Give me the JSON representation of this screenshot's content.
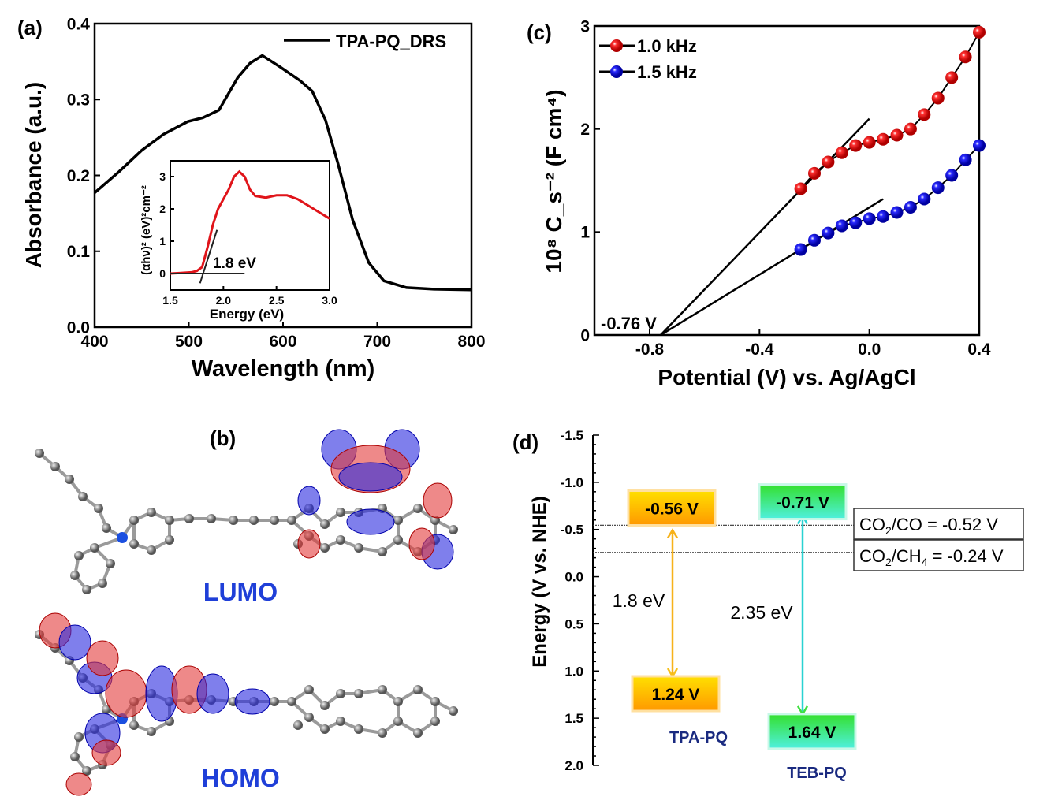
{
  "panel_labels": {
    "a": "(a)",
    "b": "(b)",
    "c": "(c)",
    "d": "(d)"
  },
  "chart_data": [
    {
      "id": "a",
      "type": "line",
      "xlabel": "Wavelength (nm)",
      "ylabel": "Absorbance (a.u.)",
      "xlim": [
        400,
        800
      ],
      "ylim": [
        0.0,
        0.4
      ],
      "xticks": [
        "400",
        "500",
        "600",
        "700",
        "800"
      ],
      "yticks": [
        "0.0",
        "0.1",
        "0.2",
        "0.3",
        "0.4"
      ],
      "legend_position": "top-right",
      "grid": false,
      "series": [
        {
          "name": "TPA-PQ_DRS",
          "color": "#000000",
          "x": [
            400,
            426,
            450,
            473,
            499,
            515,
            532,
            552,
            565,
            578,
            598,
            618,
            631,
            645,
            658,
            674,
            691,
            707,
            731,
            760,
            800
          ],
          "y": [
            0.177,
            0.205,
            0.233,
            0.254,
            0.271,
            0.276,
            0.286,
            0.329,
            0.348,
            0.358,
            0.342,
            0.325,
            0.311,
            0.273,
            0.217,
            0.141,
            0.085,
            0.061,
            0.052,
            0.05,
            0.049
          ]
        }
      ]
    },
    {
      "id": "a-inset",
      "type": "line",
      "xlabel": "Energy (eV)",
      "ylabel": "(αhν)² (eV)²cm⁻²",
      "xlim": [
        1.5,
        3.0
      ],
      "ylim": [
        -0.5,
        3.5
      ],
      "xticks": [
        "1.5",
        "2.0",
        "2.5",
        "3.0"
      ],
      "yticks": [
        "0",
        "1",
        "2",
        "3"
      ],
      "grid": false,
      "series": [
        {
          "color": "#e0141a",
          "x": [
            1.5,
            1.6,
            1.7,
            1.75,
            1.8,
            1.85,
            1.9,
            1.95,
            2.0,
            2.05,
            2.1,
            2.15,
            2.2,
            2.25,
            2.3,
            2.4,
            2.5,
            2.6,
            2.7,
            2.8,
            2.9,
            3.0
          ],
          "y": [
            0.0,
            0.02,
            0.04,
            0.08,
            0.2,
            0.8,
            1.5,
            2.0,
            2.3,
            2.6,
            3.0,
            3.15,
            3.0,
            2.6,
            2.4,
            2.35,
            2.42,
            2.42,
            2.3,
            2.1,
            1.9,
            1.7
          ]
        }
      ],
      "tangent": {
        "x": [
          1.78,
          1.94
        ],
        "y": [
          -0.3,
          1.35
        ]
      },
      "baseline": {
        "x": [
          1.5,
          2.2
        ],
        "y": [
          0,
          0
        ]
      },
      "annotation": "1.8 eV"
    },
    {
      "id": "c",
      "type": "scatter",
      "xlabel": "Potential (V) vs. Ag/AgCl",
      "ylabel": "10⁸ C_s⁻² (F cm⁴)",
      "xlim": [
        -1.0,
        0.4
      ],
      "ylim": [
        0,
        3
      ],
      "xticks": [
        "-0.8",
        "-0.4",
        "0.0",
        "0.4"
      ],
      "yticks": [
        "0",
        "1",
        "2",
        "3"
      ],
      "legend_position": "top-left",
      "grid": false,
      "x": [
        -0.25,
        -0.2,
        -0.15,
        -0.1,
        -0.05,
        0.0,
        0.05,
        0.1,
        0.15,
        0.2,
        0.25,
        0.3,
        0.35,
        0.4
      ],
      "series": [
        {
          "name": "1.0 kHz",
          "color": "#e8141c",
          "y": [
            1.42,
            1.57,
            1.68,
            1.77,
            1.84,
            1.87,
            1.9,
            1.94,
            2.0,
            2.14,
            2.3,
            2.5,
            2.7,
            2.94
          ],
          "fit": {
            "x": [
              -0.76,
              0.0
            ],
            "y": [
              0,
              2.1
            ]
          }
        },
        {
          "name": "1.5 kHz",
          "color": "#1414e0",
          "y": [
            0.83,
            0.92,
            0.99,
            1.06,
            1.09,
            1.13,
            1.15,
            1.19,
            1.24,
            1.32,
            1.43,
            1.55,
            1.7,
            1.84
          ],
          "fit": {
            "x": [
              -0.76,
              0.05
            ],
            "y": [
              0,
              1.32
            ]
          }
        }
      ],
      "annotation": "-0.76 V"
    },
    {
      "id": "d",
      "type": "bar",
      "ylabel": "Energy (V vs. NHE)",
      "ylim": [
        -1.5,
        2.0
      ],
      "yticks": [
        "-1.5",
        "-1.0",
        "-0.5",
        "0.0",
        "0.5",
        "1.0",
        "1.5",
        "2.0"
      ],
      "y_inverted": true,
      "materials": [
        {
          "name": "TPA-PQ",
          "cb": -0.56,
          "vb": 1.24,
          "cb_label": "-0.56 V",
          "vb_label": "1.24 V",
          "gap_label": "1.8 eV",
          "box_color": "#ffc000",
          "box_color2": "#ff9a00",
          "arrow_color": "#f7b21a"
        },
        {
          "name": "TEB-PQ",
          "cb": -0.71,
          "vb": 1.64,
          "cb_label": "-0.71 V",
          "vb_label": "1.64 V",
          "gap_label": "2.35 eV",
          "box_color": "#3ee03e",
          "box_color2": "#4ef0d8",
          "arrow_color": "#2ad2d2"
        }
      ],
      "redox": [
        {
          "label_main": "CO",
          "label_sub": "2",
          "label_rest": "/CO",
          "label_value": " = -0.52 V",
          "value": -0.52
        },
        {
          "label_main": "CO",
          "label_sub": "2",
          "label_rest": "/CH",
          "label_sub2": "4",
          "label_value": " = -0.24 V",
          "value": -0.24
        }
      ]
    }
  ],
  "panel_b": {
    "lumo_label": "LUMO",
    "homo_label": "HOMO",
    "label_color": "#1f3fd8"
  },
  "colors": {
    "positive_lobe": "#e23a3a",
    "negative_lobe": "#2a2ae0",
    "carbon": "#8a8a8a",
    "nitrogen": "#1b4fe0",
    "oxygen": "#d01010"
  }
}
